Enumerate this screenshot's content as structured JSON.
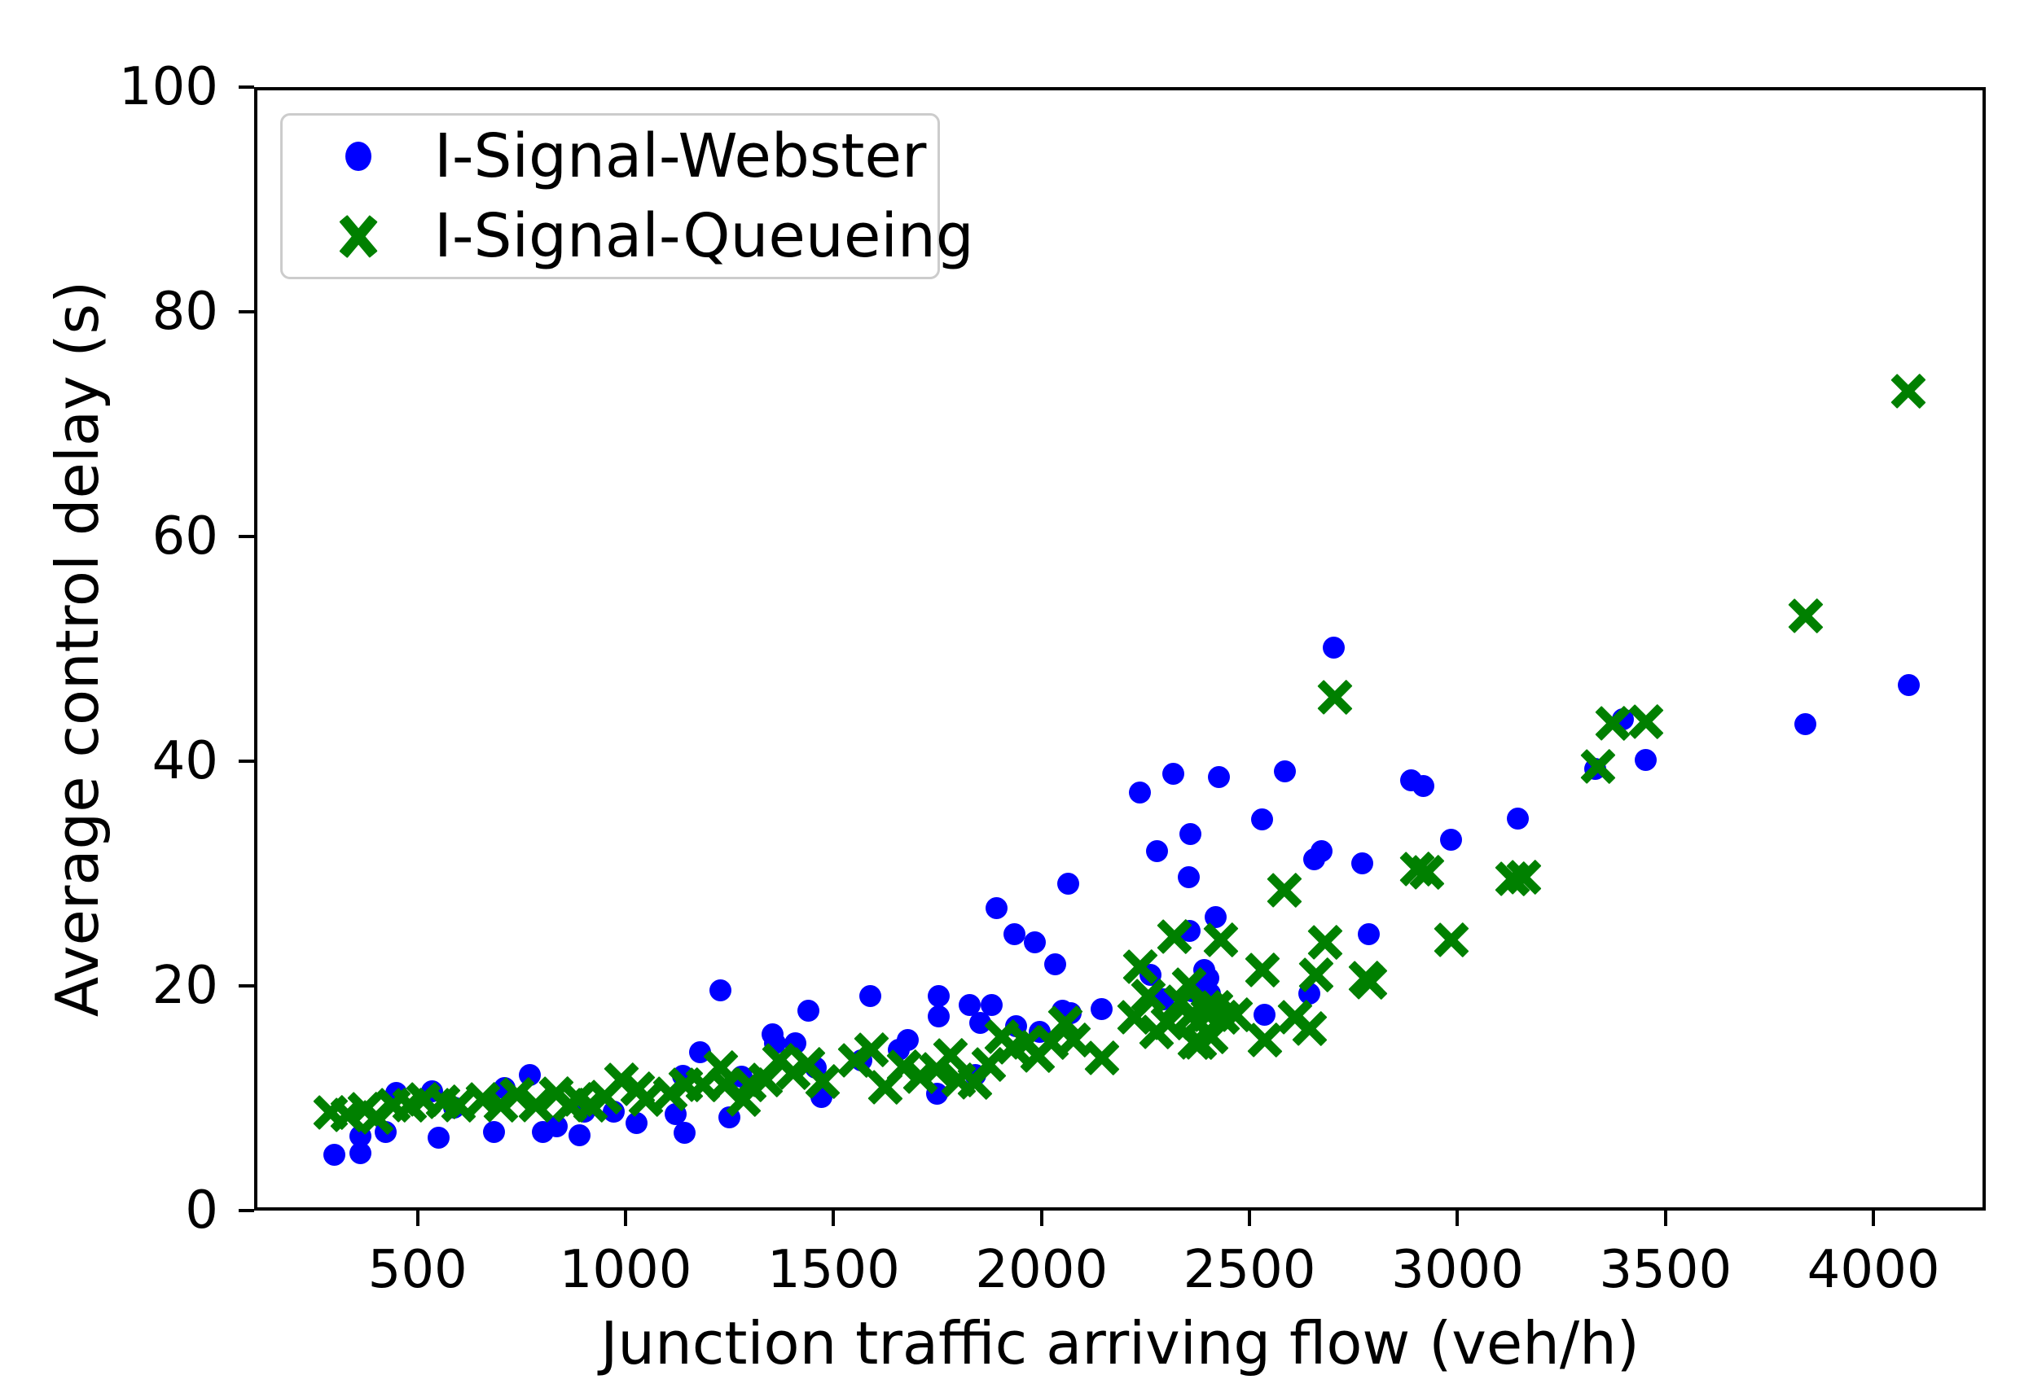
{
  "chart_data": {
    "type": "scatter",
    "title": "",
    "xlabel": "Junction traffic arriving flow (veh/h)",
    "ylabel": "Average control delay (s)",
    "xlim": [
      107,
      4270
    ],
    "ylim": [
      0,
      100
    ],
    "xticks": [
      500,
      1000,
      1500,
      2000,
      2500,
      3000,
      3500,
      4000
    ],
    "yticks": [
      0,
      20,
      40,
      60,
      80,
      100
    ],
    "grid": false,
    "background_color": "#ffffff",
    "axis_color": "#000000",
    "legend": {
      "position": "upper left",
      "border_color": "#cccccc",
      "entries": [
        {
          "label": "I-Signal-Webster",
          "marker": "circle-marker-icon",
          "color": "#0000ff"
        },
        {
          "label": "I-Signal-Queueing",
          "marker": "x-marker-icon",
          "color": "#008000"
        }
      ]
    },
    "series": [
      {
        "name": "I-Signal-Webster",
        "marker": "circle",
        "color": "#0000ff",
        "marker_size_px": 27,
        "points": [
          [
            300,
            5.0
          ],
          [
            363,
            5.1
          ],
          [
            363,
            6.6
          ],
          [
            423,
            7.0
          ],
          [
            449,
            10.5
          ],
          [
            534,
            10.6
          ],
          [
            550,
            6.5
          ],
          [
            587,
            9.2
          ],
          [
            684,
            7.0
          ],
          [
            710,
            10.9
          ],
          [
            769,
            12.1
          ],
          [
            802,
            7.0
          ],
          [
            834,
            7.5
          ],
          [
            890,
            6.7
          ],
          [
            902,
            8.8
          ],
          [
            971,
            8.8
          ],
          [
            1027,
            7.8
          ],
          [
            1121,
            8.6
          ],
          [
            1137,
            12.0
          ],
          [
            1141,
            6.9
          ],
          [
            1180,
            14.1
          ],
          [
            1229,
            19.6
          ],
          [
            1249,
            8.3
          ],
          [
            1278,
            11.9
          ],
          [
            1353,
            15.7
          ],
          [
            1360,
            14.9
          ],
          [
            1409,
            14.9
          ],
          [
            1440,
            17.8
          ],
          [
            1458,
            12.7
          ],
          [
            1470,
            10.1
          ],
          [
            1566,
            13.4
          ],
          [
            1588,
            19.1
          ],
          [
            1656,
            14.3
          ],
          [
            1679,
            15.2
          ],
          [
            1748,
            10.4
          ],
          [
            1752,
            17.3
          ],
          [
            1752,
            19.1
          ],
          [
            1827,
            18.3
          ],
          [
            1840,
            12.1
          ],
          [
            1852,
            16.7
          ],
          [
            1880,
            18.3
          ],
          [
            1891,
            26.9
          ],
          [
            1934,
            24.6
          ],
          [
            1938,
            16.4
          ],
          [
            1983,
            23.9
          ],
          [
            1996,
            15.9
          ],
          [
            2032,
            21.9
          ],
          [
            2051,
            17.8
          ],
          [
            2065,
            29.1
          ],
          [
            2071,
            17.6
          ],
          [
            2144,
            17.9
          ],
          [
            2237,
            37.2
          ],
          [
            2261,
            21.0
          ],
          [
            2277,
            32.0
          ],
          [
            2293,
            18.8
          ],
          [
            2316,
            38.9
          ],
          [
            2353,
            29.7
          ],
          [
            2355,
            24.9
          ],
          [
            2357,
            33.5
          ],
          [
            2361,
            19.5
          ],
          [
            2391,
            21.4
          ],
          [
            2400,
            20.7
          ],
          [
            2404,
            19.3
          ],
          [
            2418,
            26.1
          ],
          [
            2426,
            38.6
          ],
          [
            2531,
            34.8
          ],
          [
            2537,
            17.4
          ],
          [
            2586,
            39.1
          ],
          [
            2643,
            19.3
          ],
          [
            2655,
            31.3
          ],
          [
            2674,
            32.0
          ],
          [
            2703,
            50.1
          ],
          [
            2772,
            30.9
          ],
          [
            2786,
            24.6
          ],
          [
            2888,
            38.3
          ],
          [
            2917,
            37.8
          ],
          [
            2985,
            33.0
          ],
          [
            3145,
            34.9
          ],
          [
            3332,
            39.3
          ],
          [
            3397,
            43.7
          ],
          [
            3452,
            40.1
          ],
          [
            3836,
            43.3
          ],
          [
            4084,
            46.8
          ]
        ]
      },
      {
        "name": "I-Signal-Queueing",
        "marker": "x",
        "color": "#008000",
        "marker_size_px": 46,
        "points": [
          [
            290,
            8.7
          ],
          [
            332,
            8.5
          ],
          [
            373,
            9.0
          ],
          [
            400,
            8.3
          ],
          [
            442,
            9.4
          ],
          [
            481,
            9.4
          ],
          [
            514,
            9.9
          ],
          [
            560,
            9.7
          ],
          [
            599,
            9.4
          ],
          [
            657,
            9.9
          ],
          [
            700,
            9.4
          ],
          [
            739,
            10.3
          ],
          [
            784,
            9.4
          ],
          [
            834,
            10.4
          ],
          [
            867,
            9.4
          ],
          [
            886,
            9.9
          ],
          [
            916,
            9.4
          ],
          [
            951,
            10.1
          ],
          [
            990,
            11.6
          ],
          [
            1029,
            10.8
          ],
          [
            1049,
            9.9
          ],
          [
            1108,
            10.4
          ],
          [
            1145,
            11.2
          ],
          [
            1186,
            11.2
          ],
          [
            1229,
            12.7
          ],
          [
            1239,
            11.2
          ],
          [
            1284,
            9.9
          ],
          [
            1298,
            11.2
          ],
          [
            1337,
            11.6
          ],
          [
            1370,
            13.4
          ],
          [
            1402,
            12.3
          ],
          [
            1438,
            13.0
          ],
          [
            1474,
            11.5
          ],
          [
            1552,
            13.4
          ],
          [
            1591,
            14.3
          ],
          [
            1624,
            11.0
          ],
          [
            1670,
            12.8
          ],
          [
            1709,
            11.9
          ],
          [
            1748,
            12.6
          ],
          [
            1781,
            13.8
          ],
          [
            1800,
            11.6
          ],
          [
            1840,
            11.4
          ],
          [
            1872,
            13.0
          ],
          [
            1905,
            15.5
          ],
          [
            1931,
            14.5
          ],
          [
            1964,
            15.0
          ],
          [
            1990,
            13.8
          ],
          [
            2023,
            15.0
          ],
          [
            2056,
            16.7
          ],
          [
            2076,
            15.2
          ],
          [
            2146,
            13.6
          ],
          [
            2224,
            17.2
          ],
          [
            2238,
            21.7
          ],
          [
            2257,
            19.1
          ],
          [
            2277,
            15.9
          ],
          [
            2303,
            16.7
          ],
          [
            2320,
            24.4
          ],
          [
            2336,
            18.6
          ],
          [
            2355,
            20.1
          ],
          [
            2361,
            17.4
          ],
          [
            2369,
            15.0
          ],
          [
            2375,
            16.7
          ],
          [
            2381,
            15.0
          ],
          [
            2395,
            18.1
          ],
          [
            2400,
            17.4
          ],
          [
            2408,
            15.5
          ],
          [
            2420,
            18.1
          ],
          [
            2430,
            24.1
          ],
          [
            2434,
            17.2
          ],
          [
            2466,
            17.4
          ],
          [
            2531,
            21.4
          ],
          [
            2537,
            15.2
          ],
          [
            2584,
            28.5
          ],
          [
            2609,
            17.2
          ],
          [
            2645,
            16.2
          ],
          [
            2661,
            21.0
          ],
          [
            2682,
            23.9
          ],
          [
            2706,
            45.7
          ],
          [
            2780,
            20.7
          ],
          [
            2790,
            20.3
          ],
          [
            2903,
            30.4
          ],
          [
            2926,
            30.1
          ],
          [
            2985,
            24.1
          ],
          [
            3132,
            29.5
          ],
          [
            3159,
            29.7
          ],
          [
            3338,
            39.5
          ],
          [
            3373,
            43.4
          ],
          [
            3454,
            43.5
          ],
          [
            3837,
            52.9
          ],
          [
            4084,
            72.9
          ]
        ]
      }
    ]
  }
}
